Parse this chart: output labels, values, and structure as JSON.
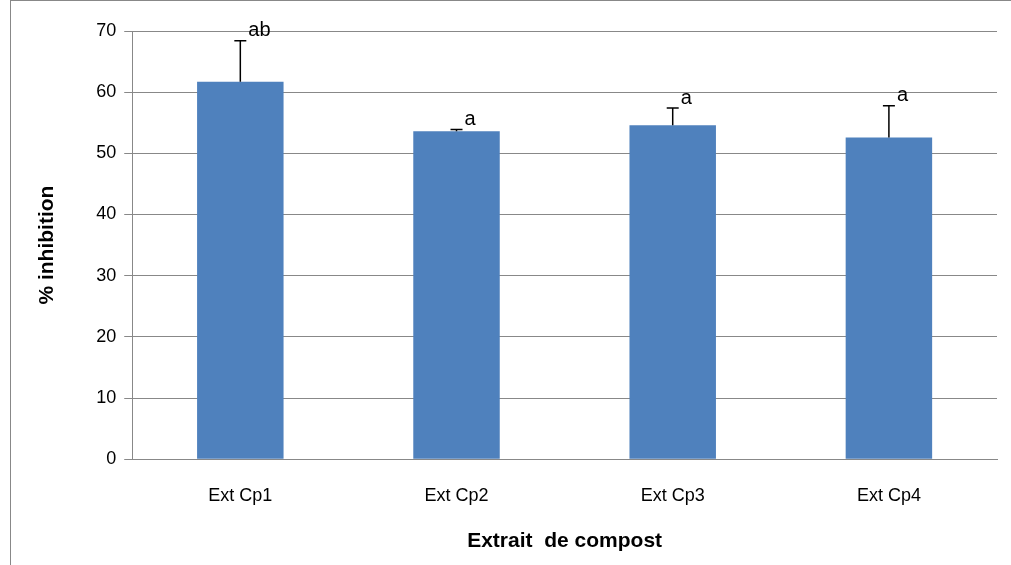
{
  "chart_data": {
    "type": "bar",
    "xlabel": "Extrait  de compost",
    "ylabel": "% inhibition",
    "categories": [
      "Ext Cp1",
      "Ext Cp2",
      "Ext Cp3",
      "Ext Cp4"
    ],
    "values": [
      61.7,
      53.6,
      54.6,
      52.6
    ],
    "errors": [
      [
        61.7,
        68.4
      ],
      [
        53.6,
        53.9
      ],
      [
        54.6,
        57.4
      ],
      [
        52.6,
        57.8
      ]
    ],
    "color": "#4f81bd",
    "ylim": [
      0,
      70
    ],
    "yticks": [
      0,
      10,
      20,
      30,
      40,
      50,
      60,
      70
    ],
    "grid": "y",
    "legend": false,
    "annotations": [
      {
        "text": "ab",
        "x": "Ext Cp1",
        "y": 68.4
      },
      {
        "text": "a",
        "x": "Ext Cp2",
        "y": 53.9
      },
      {
        "text": "a",
        "x": "Ext Cp3",
        "y": 57.4
      },
      {
        "text": "a",
        "x": "Ext Cp4",
        "y": 57.8
      }
    ]
  }
}
